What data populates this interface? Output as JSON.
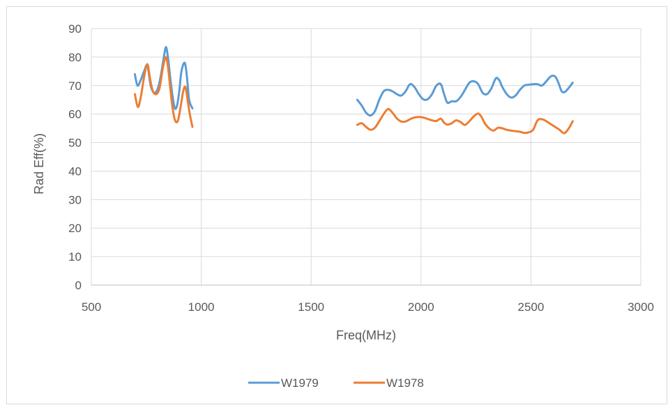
{
  "chart_data": {
    "type": "line",
    "title": "",
    "xlabel": "Freq(MHz)",
    "ylabel": "Rad Eff(%)",
    "xlim": [
      500,
      3000
    ],
    "ylim": [
      0,
      90
    ],
    "xticks": [
      500,
      1000,
      1500,
      2000,
      2500,
      3000
    ],
    "yticks": [
      0,
      10,
      20,
      30,
      40,
      50,
      60,
      70,
      80,
      90
    ],
    "grid": true,
    "legend_position": "bottom",
    "series": [
      {
        "name": "W1979",
        "color": "#5b9bd5",
        "segments": [
          [
            [
              698,
              74
            ],
            [
              710,
              70
            ],
            [
              725,
              72
            ],
            [
              740,
              75
            ],
            [
              755,
              77
            ],
            [
              770,
              70
            ],
            [
              785,
              67.5
            ],
            [
              800,
              68.5
            ],
            [
              815,
              73
            ],
            [
              830,
              80
            ],
            [
              840,
              83.5
            ],
            [
              850,
              79
            ],
            [
              860,
              72
            ],
            [
              870,
              66
            ],
            [
              880,
              62
            ],
            [
              890,
              63
            ],
            [
              900,
              68
            ],
            [
              910,
              75
            ],
            [
              925,
              78
            ],
            [
              935,
              73
            ],
            [
              945,
              65
            ],
            [
              960,
              62
            ]
          ],
          [
            [
              1710,
              65
            ],
            [
              1730,
              63
            ],
            [
              1750,
              60.5
            ],
            [
              1770,
              59.5
            ],
            [
              1790,
              61
            ],
            [
              1810,
              65
            ],
            [
              1830,
              68
            ],
            [
              1850,
              68.5
            ],
            [
              1870,
              68
            ],
            [
              1890,
              67
            ],
            [
              1910,
              66.5
            ],
            [
              1930,
              68
            ],
            [
              1950,
              70.5
            ],
            [
              1970,
              69.5
            ],
            [
              1990,
              67
            ],
            [
              2010,
              65.2
            ],
            [
              2030,
              65.2
            ],
            [
              2050,
              67
            ],
            [
              2070,
              70
            ],
            [
              2090,
              70.5
            ],
            [
              2105,
              67
            ],
            [
              2120,
              64
            ],
            [
              2140,
              64.5
            ],
            [
              2160,
              64.5
            ],
            [
              2180,
              66
            ],
            [
              2200,
              68.5
            ],
            [
              2220,
              71
            ],
            [
              2240,
              71.5
            ],
            [
              2260,
              70.5
            ],
            [
              2280,
              67.5
            ],
            [
              2300,
              67
            ],
            [
              2320,
              69
            ],
            [
              2340,
              72.5
            ],
            [
              2355,
              72
            ],
            [
              2370,
              69.5
            ],
            [
              2390,
              67
            ],
            [
              2410,
              65.8
            ],
            [
              2430,
              66.5
            ],
            [
              2450,
              68.5
            ],
            [
              2470,
              70
            ],
            [
              2490,
              70.3
            ],
            [
              2510,
              70.5
            ],
            [
              2530,
              70.5
            ],
            [
              2550,
              70
            ],
            [
              2570,
              71.5
            ],
            [
              2590,
              73.2
            ],
            [
              2610,
              73.2
            ],
            [
              2625,
              71
            ],
            [
              2640,
              68
            ],
            [
              2655,
              67.8
            ],
            [
              2670,
              69
            ],
            [
              2690,
              71
            ]
          ]
        ]
      },
      {
        "name": "W1978",
        "color": "#ed7d31",
        "segments": [
          [
            [
              698,
              67
            ],
            [
              712,
              62.5
            ],
            [
              725,
              66
            ],
            [
              740,
              73
            ],
            [
              755,
              77.5
            ],
            [
              768,
              72
            ],
            [
              780,
              68
            ],
            [
              795,
              67
            ],
            [
              810,
              69
            ],
            [
              825,
              76
            ],
            [
              838,
              80
            ],
            [
              848,
              77
            ],
            [
              858,
              70
            ],
            [
              868,
              63
            ],
            [
              880,
              58
            ],
            [
              893,
              57.5
            ],
            [
              905,
              62
            ],
            [
              918,
              68
            ],
            [
              928,
              69.5
            ],
            [
              938,
              65
            ],
            [
              948,
              60
            ],
            [
              960,
              55.5
            ]
          ],
          [
            [
              1710,
              56.2
            ],
            [
              1730,
              56.8
            ],
            [
              1750,
              55.5
            ],
            [
              1770,
              54.5
            ],
            [
              1790,
              55.2
            ],
            [
              1810,
              57.5
            ],
            [
              1830,
              60
            ],
            [
              1850,
              61.8
            ],
            [
              1870,
              60.5
            ],
            [
              1890,
              58.5
            ],
            [
              1910,
              57.4
            ],
            [
              1930,
              57.4
            ],
            [
              1950,
              58.2
            ],
            [
              1970,
              58.8
            ],
            [
              1990,
              59
            ],
            [
              2010,
              58.8
            ],
            [
              2030,
              58.3
            ],
            [
              2050,
              57.8
            ],
            [
              2070,
              57.6
            ],
            [
              2090,
              58.4
            ],
            [
              2105,
              57
            ],
            [
              2120,
              56.3
            ],
            [
              2140,
              56.8
            ],
            [
              2160,
              57.8
            ],
            [
              2180,
              57.2
            ],
            [
              2200,
              56.2
            ],
            [
              2220,
              57.5
            ],
            [
              2240,
              59.2
            ],
            [
              2260,
              60.2
            ],
            [
              2275,
              59
            ],
            [
              2290,
              56.8
            ],
            [
              2310,
              55
            ],
            [
              2330,
              54.2
            ],
            [
              2350,
              55.2
            ],
            [
              2370,
              55
            ],
            [
              2390,
              54.5
            ],
            [
              2410,
              54.2
            ],
            [
              2430,
              54
            ],
            [
              2450,
              53.8
            ],
            [
              2470,
              53.4
            ],
            [
              2490,
              53.6
            ],
            [
              2510,
              54.5
            ],
            [
              2530,
              57.8
            ],
            [
              2550,
              58.2
            ],
            [
              2570,
              57.5
            ],
            [
              2590,
              56.5
            ],
            [
              2610,
              55.5
            ],
            [
              2630,
              54.5
            ],
            [
              2650,
              53.3
            ],
            [
              2665,
              54.2
            ],
            [
              2680,
              56
            ],
            [
              2690,
              57.5
            ]
          ]
        ]
      }
    ]
  }
}
